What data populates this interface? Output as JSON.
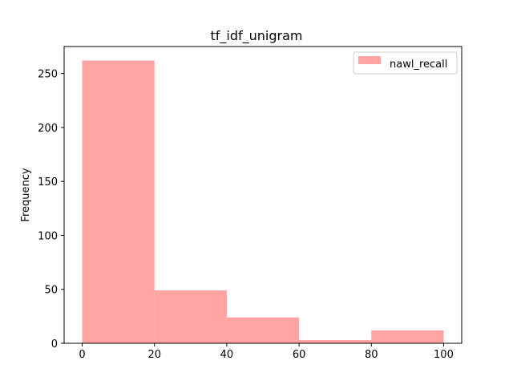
{
  "chart_data": {
    "type": "bar",
    "title": "tf_idf_unigram",
    "xlabel": "",
    "ylabel": "Frequency",
    "bin_edges": [
      0,
      20,
      40,
      60,
      80,
      100
    ],
    "series": [
      {
        "name": "nawl_recall",
        "values": [
          262,
          49,
          24,
          3,
          12
        ],
        "color": "#ffa3a3"
      }
    ],
    "xlim": [
      -5,
      105
    ],
    "ylim": [
      0,
      275
    ],
    "xticks": [
      0,
      20,
      40,
      60,
      80,
      100
    ],
    "yticks": [
      0,
      50,
      100,
      150,
      200,
      250
    ],
    "grid": false,
    "legend_position": "top-right"
  }
}
